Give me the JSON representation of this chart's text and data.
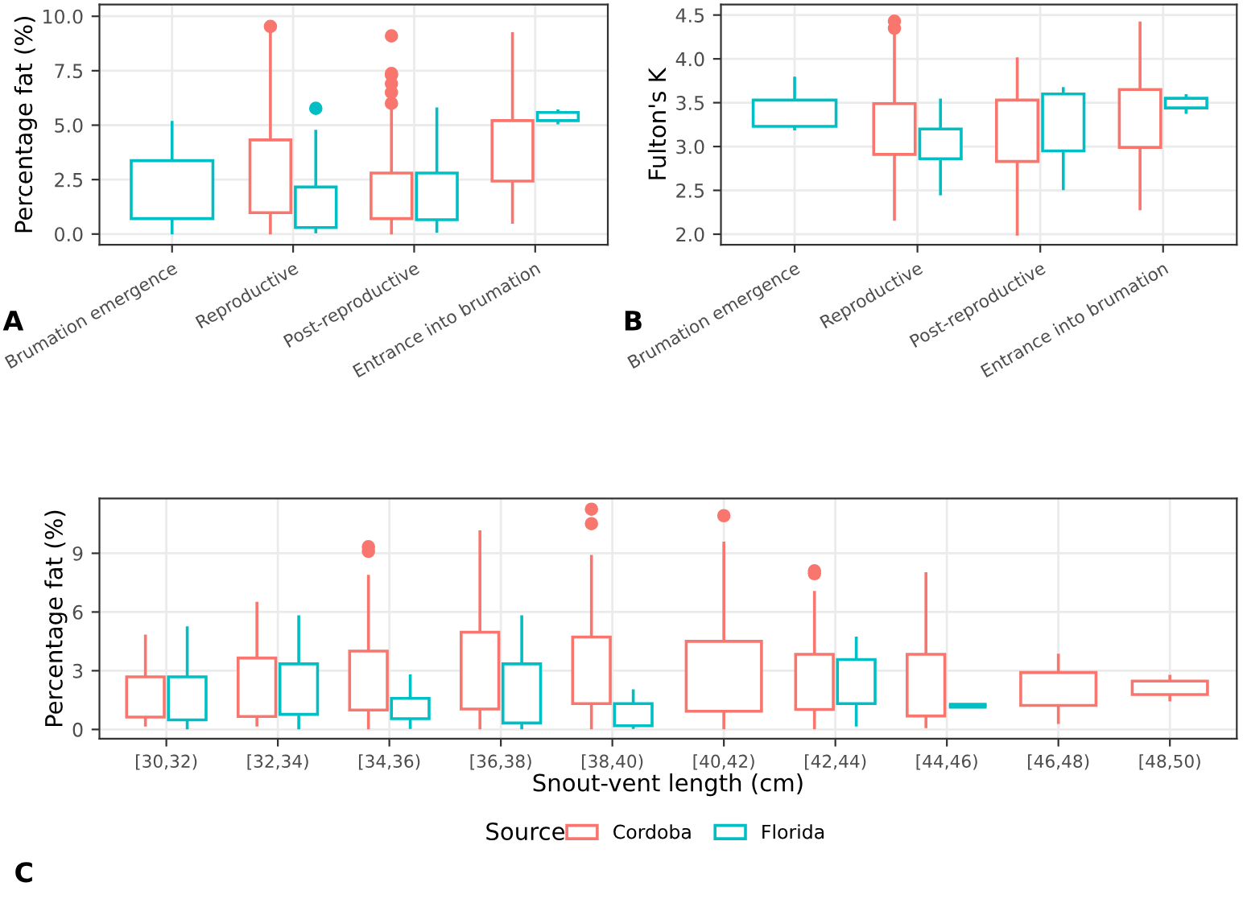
{
  "chart_data": [
    {
      "type": "box",
      "ylabel": "Percentage fat (%)",
      "categories": [
        "Brumation emergence",
        "Reproductive",
        "Post-reproductive",
        "Entrance into brumation"
      ],
      "ylim": [
        -0.49,
        10.54
      ],
      "yticks": [
        {
          "value": 0,
          "label": "0.0"
        },
        {
          "value": 2.5,
          "label": "2.5"
        },
        {
          "value": 5,
          "label": "5.0"
        },
        {
          "value": 7.5,
          "label": "7.5"
        },
        {
          "value": 10,
          "label": "10.0"
        }
      ],
      "grid": true,
      "legend": "bottom",
      "legend_title": "Source",
      "annotations": [
        "A"
      ],
      "series": [
        {
          "name": "Cordoba",
          "color": "#f8766d",
          "boxes": [
            null,
            {
              "low": 0.05,
              "q1": 0.98,
              "median": 2.38,
              "q3": 4.32,
              "high": 9.2,
              "outliers": [
                9.53
              ]
            },
            {
              "low": 0.05,
              "q1": 0.71,
              "median": 1.84,
              "q3": 2.8,
              "high": 5.9,
              "outliers": [
                6.0,
                6.5,
                6.9,
                7.3,
                7.37,
                9.1
              ]
            },
            {
              "low": 0.54,
              "q1": 2.43,
              "median": 3.54,
              "q3": 5.21,
              "high": 9.2
            }
          ]
        },
        {
          "name": "Florida",
          "color": "#00bfc4",
          "boxes": [
            {
              "low": 0.05,
              "q1": 0.71,
              "median": 1.45,
              "q3": 3.37,
              "high": 5.13
            },
            {
              "low": 0.1,
              "q1": 0.3,
              "median": 1.08,
              "q3": 2.16,
              "high": 4.72,
              "outliers": [
                5.77
              ]
            },
            {
              "low": 0.12,
              "q1": 0.66,
              "median": 2.43,
              "q3": 2.8,
              "high": 5.75
            },
            {
              "low": 5.1,
              "q1": 5.21,
              "median": 5.38,
              "q3": 5.58,
              "high": 5.65
            }
          ]
        }
      ]
    },
    {
      "type": "box",
      "ylabel": "Fulton's K",
      "categories": [
        "Brumation emergence",
        "Reproductive",
        "Post-reproductive",
        "Entrance into brumation"
      ],
      "ylim": [
        1.88,
        4.62
      ],
      "yticks": [
        {
          "value": 2,
          "label": "2.0"
        },
        {
          "value": 2.5,
          "label": "2.5"
        },
        {
          "value": 3,
          "label": "3.0"
        },
        {
          "value": 3.5,
          "label": "3.5"
        },
        {
          "value": 4,
          "label": "4.0"
        },
        {
          "value": 4.5,
          "label": "4.5"
        }
      ],
      "grid": true,
      "annotations": [
        "B"
      ],
      "series": [
        {
          "name": "Cordoba",
          "color": "#f8766d",
          "boxes": [
            null,
            {
              "low": 2.17,
              "q1": 2.91,
              "median": 3.21,
              "q3": 3.49,
              "high": 4.3,
              "outliers": [
                4.35,
                4.43
              ]
            },
            {
              "low": 2.0,
              "q1": 2.83,
              "median": 3.03,
              "q3": 3.53,
              "high": 4.0
            },
            {
              "low": 2.29,
              "q1": 2.99,
              "median": 3.2,
              "q3": 3.65,
              "high": 4.41
            }
          ]
        },
        {
          "name": "Florida",
          "color": "#00bfc4",
          "boxes": [
            {
              "low": 3.2,
              "q1": 3.23,
              "median": 3.27,
              "q3": 3.53,
              "high": 3.78
            },
            {
              "low": 2.46,
              "q1": 2.86,
              "median": 3.1,
              "q3": 3.2,
              "high": 3.53
            },
            {
              "low": 2.52,
              "q1": 2.95,
              "median": 3.27,
              "q3": 3.6,
              "high": 3.66
            },
            {
              "low": 3.39,
              "q1": 3.44,
              "median": 3.49,
              "q3": 3.55,
              "high": 3.58
            }
          ]
        }
      ]
    },
    {
      "type": "box",
      "ylabel": "Percentage fat (%)",
      "xlabel": "Snout-vent length (cm)",
      "categories": [
        "[30,32)",
        "[32,34)",
        "[34,36)",
        "[36,38)",
        "[38,40)",
        "[40,42)",
        "[42,44)",
        "[44,46)",
        "[46,48)",
        "[48,50)"
      ],
      "ylim": [
        -0.47,
        11.8
      ],
      "yticks": [
        0,
        3,
        6,
        9
      ],
      "grid": true,
      "annotations": [
        "C"
      ],
      "series": [
        {
          "name": "Cordoba",
          "color": "#f8766d",
          "boxes": [
            {
              "low": 0.22,
              "q1": 0.63,
              "median": 1.37,
              "q3": 2.69,
              "high": 4.77
            },
            {
              "low": 0.22,
              "q1": 0.66,
              "median": 1.7,
              "q3": 3.65,
              "high": 6.45
            },
            {
              "low": 0.08,
              "q1": 0.99,
              "median": 2.14,
              "q3": 4.0,
              "high": 7.82,
              "outliers": [
                9.1,
                9.33
              ]
            },
            {
              "low": 0.08,
              "q1": 1.04,
              "median": 2.58,
              "q3": 4.97,
              "high": 10.1
            },
            {
              "low": 0.08,
              "q1": 1.32,
              "median": 2.88,
              "q3": 4.72,
              "high": 8.84,
              "outliers": [
                10.51,
                11.25
              ]
            },
            {
              "low": 0.08,
              "q1": 0.93,
              "median": 2.11,
              "q3": 4.5,
              "high": 9.52,
              "outliers": [
                10.92
              ]
            },
            {
              "low": 0.08,
              "q1": 1.02,
              "median": 1.98,
              "q3": 3.84,
              "high": 7.0,
              "outliers": [
                7.96,
                8.1
              ]
            },
            {
              "low": 0.14,
              "q1": 0.69,
              "median": 2.14,
              "q3": 3.84,
              "high": 7.96
            },
            {
              "low": 0.36,
              "q1": 1.23,
              "median": 2.2,
              "q3": 2.91,
              "high": 3.79
            },
            {
              "low": 1.51,
              "q1": 1.78,
              "median": 2.11,
              "q3": 2.47,
              "high": 2.72
            }
          ]
        },
        {
          "name": "Florida",
          "color": "#00bfc4",
          "boxes": [
            {
              "low": 0.08,
              "q1": 0.49,
              "median": 1.29,
              "q3": 2.69,
              "high": 5.19
            },
            {
              "low": 0.08,
              "q1": 0.77,
              "median": 2.25,
              "q3": 3.35,
              "high": 5.76
            },
            {
              "low": 0.1,
              "q1": 0.55,
              "median": 1.1,
              "q3": 1.59,
              "high": 2.74
            },
            {
              "low": 0.08,
              "q1": 0.33,
              "median": 0.96,
              "q3": 3.35,
              "high": 5.76
            },
            {
              "low": 0.1,
              "q1": 0.19,
              "median": 0.77,
              "q3": 1.32,
              "high": 1.98
            },
            null,
            {
              "low": 0.22,
              "q1": 1.32,
              "median": 2.47,
              "q3": 3.57,
              "high": 4.67
            },
            {
              "low": 1.21,
              "q1": 1.21,
              "median": 1.21,
              "q3": 1.21,
              "high": 1.21
            },
            null,
            null
          ]
        }
      ]
    }
  ]
}
